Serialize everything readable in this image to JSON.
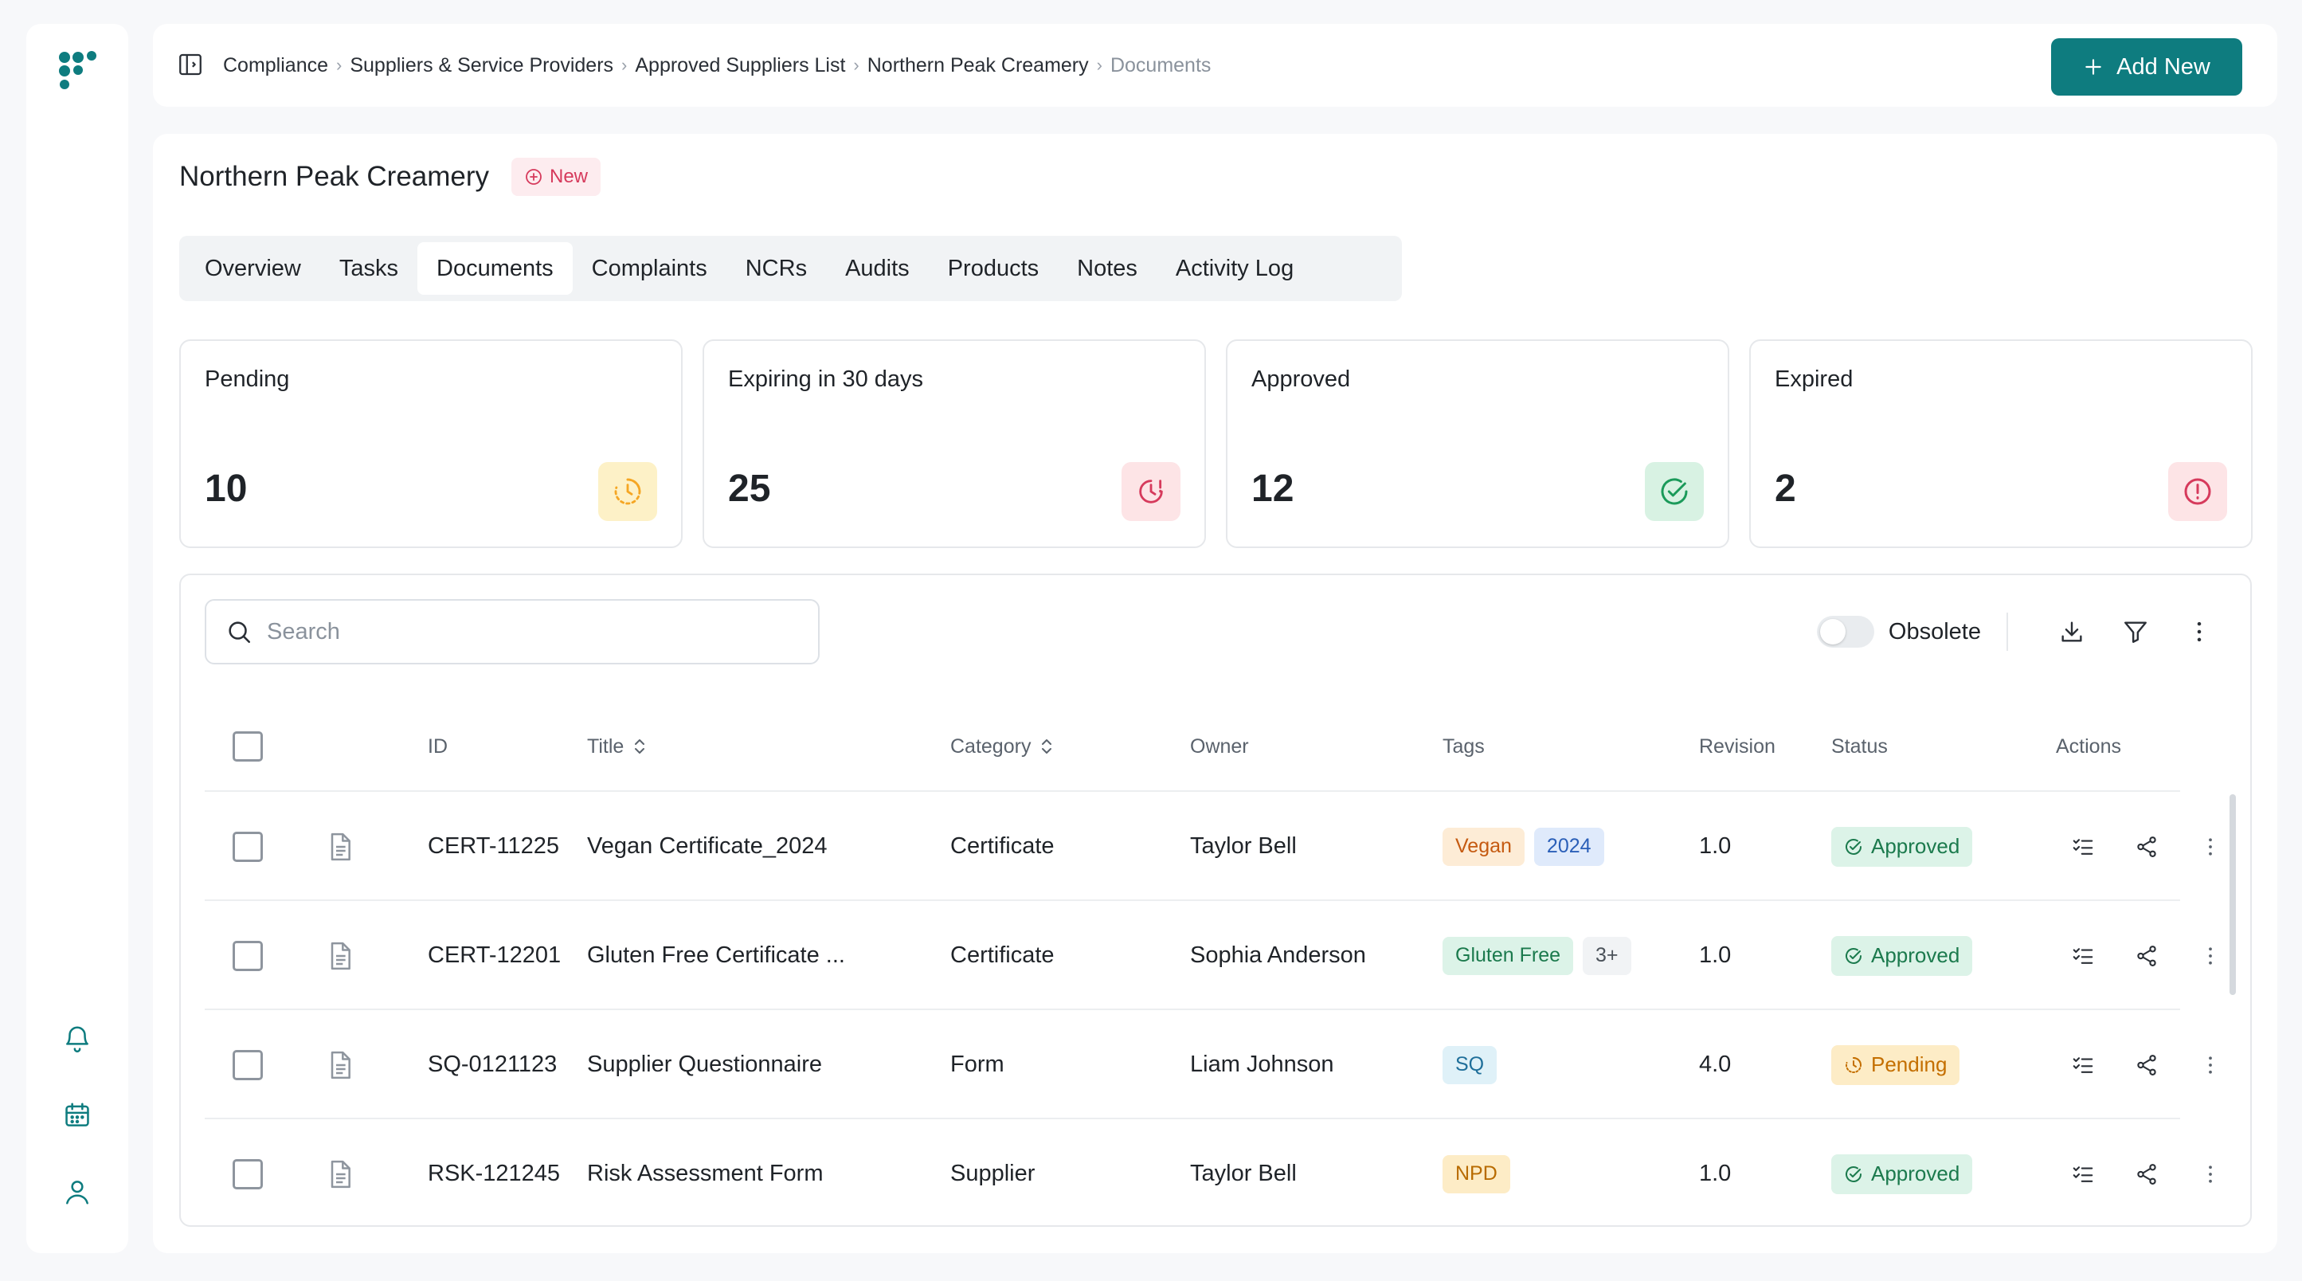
{
  "breadcrumb": {
    "items": [
      "Compliance",
      "Suppliers & Service Providers",
      "Approved Suppliers List",
      "Northern Peak Creamery",
      "Documents"
    ]
  },
  "header": {
    "add_new_label": "Add New"
  },
  "supplier": {
    "name": "Northern Peak Creamery",
    "badge": "New"
  },
  "tabs": [
    "Overview",
    "Tasks",
    "Documents",
    "Complaints",
    "NCRs",
    "Audits",
    "Products",
    "Notes",
    "Activity Log"
  ],
  "active_tab": "Documents",
  "stats": [
    {
      "label": "Pending",
      "value": "10",
      "icon": "clock-icon",
      "color": "#f5a623"
    },
    {
      "label": "Expiring in 30 days",
      "value": "25",
      "icon": "clock-alert-icon",
      "color": "#d63a5c"
    },
    {
      "label": "Approved",
      "value": "12",
      "icon": "check-circle-icon",
      "color": "#1b9a5a"
    },
    {
      "label": "Expired",
      "value": "2",
      "icon": "alert-circle-icon",
      "color": "#d63a5c"
    }
  ],
  "search": {
    "placeholder": "Search"
  },
  "toolbar": {
    "obsolete_label": "Obsolete",
    "obsolete_on": false
  },
  "table": {
    "columns": {
      "id": "ID",
      "title": "Title",
      "category": "Category",
      "owner": "Owner",
      "tags": "Tags",
      "revision": "Revision",
      "status": "Status",
      "actions": "Actions"
    },
    "rows": [
      {
        "id": "CERT-11225",
        "title": "Vegan Certificate_2024",
        "category": "Certificate",
        "owner": "Taylor Bell",
        "tags": [
          "Vegan",
          "2024"
        ],
        "revision": "1.0",
        "status": "Approved"
      },
      {
        "id": "CERT-12201",
        "title": "Gluten Free Certificate ...",
        "category": "Certificate",
        "owner": "Sophia Anderson",
        "tags": [
          "Gluten Free",
          "3+"
        ],
        "revision": "1.0",
        "status": "Approved"
      },
      {
        "id": "SQ-0121123",
        "title": "Supplier Questionnaire",
        "category": "Form",
        "owner": "Liam Johnson",
        "tags": [
          "SQ"
        ],
        "revision": "4.0",
        "status": "Pending"
      },
      {
        "id": "RSK-121245",
        "title": "Risk Assessment Form",
        "category": "Supplier",
        "owner": "Taylor Bell",
        "tags": [
          "NPD"
        ],
        "revision": "1.0",
        "status": "Approved"
      }
    ]
  },
  "colors": {
    "accent": "#0e7c7f",
    "approved": "#1b7a4d",
    "pending": "#c46f00"
  }
}
